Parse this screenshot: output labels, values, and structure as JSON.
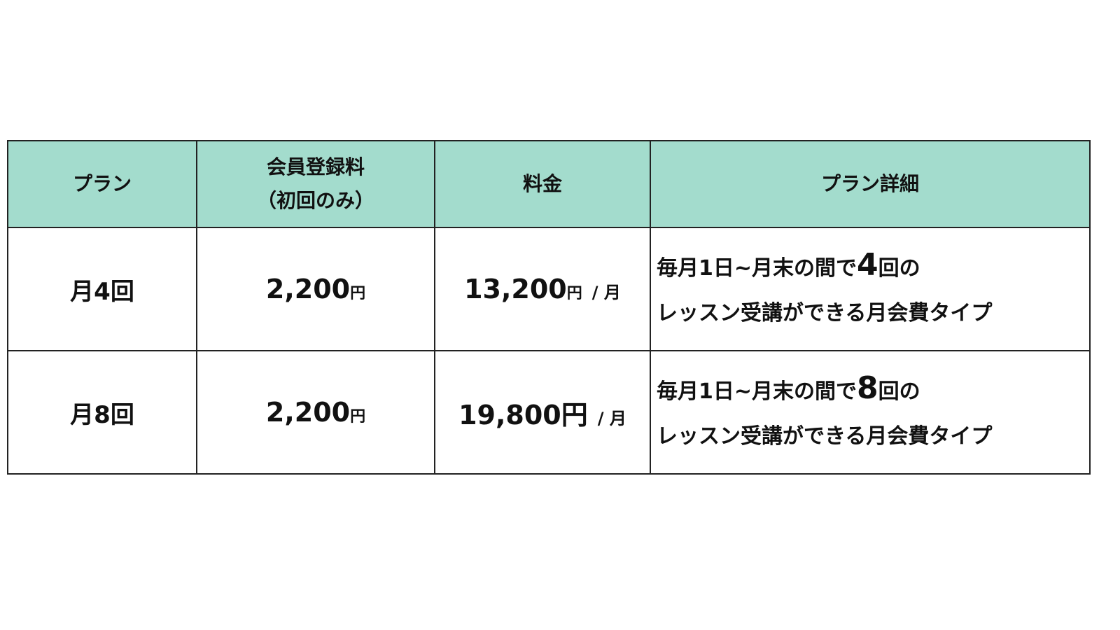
{
  "header": {
    "plan": "プラン",
    "registration_line1": "会員登録料",
    "registration_line2": "（初回のみ）",
    "price": "料金",
    "details": "プラン詳細"
  },
  "header_color": "#a3dccd",
  "rows": [
    {
      "plan": "月4回",
      "registration_fee": "2,200",
      "registration_unit": "円",
      "price": "13,200",
      "price_unit": "円",
      "price_per": "/ 月",
      "detail_prefix": "毎月1日~月末の間で",
      "detail_count": "4",
      "detail_suffix": "回の",
      "detail_line2": "レッスン受講ができる月会費タイプ"
    },
    {
      "plan": "月8回",
      "registration_fee": "2,200",
      "registration_unit": "円",
      "price": "19,800",
      "price_unit": "円",
      "price_per": "/ 月",
      "detail_prefix": "毎月1日~月末の間で",
      "detail_count": "8",
      "detail_suffix": "回の",
      "detail_line2": "レッスン受講ができる月会費タイプ"
    }
  ]
}
